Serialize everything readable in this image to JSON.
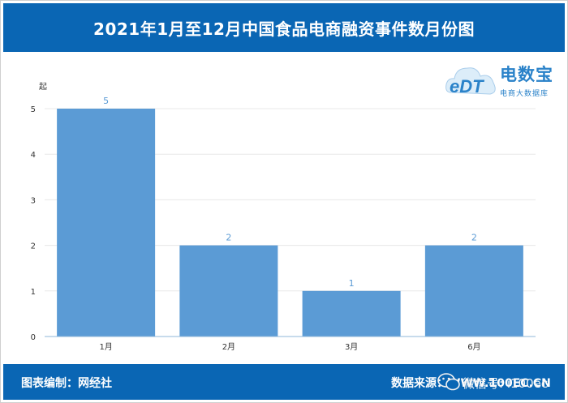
{
  "header": {
    "title": "2021年1月至12月中国食品电商融资事件数月份图"
  },
  "logo": {
    "brand": "电数宝",
    "sub": "电商大数据库",
    "mark": "eDT",
    "icon": "cloud-logo-icon"
  },
  "footer": {
    "left_text": "图表编制：网经社",
    "right_text": "数据来源：WWW.100EC.CN",
    "wechat_text": "微信号: i100ec",
    "wechat_icon": "wechat-icon"
  },
  "colors": {
    "header_bg": "#0a66b4",
    "bar": "#5b9bd5",
    "label": "#5b9bd5",
    "grid": "#e8e8e8",
    "axis": "#8fb7d9"
  },
  "chart_data": {
    "type": "bar",
    "title": "2021年1月至12月中国食品电商融资事件数月份图",
    "ylabel": "起",
    "xlabel": "",
    "categories": [
      "1月",
      "2月",
      "3月",
      "6月"
    ],
    "values": [
      5,
      2,
      1,
      2
    ],
    "ylim": [
      0,
      5
    ],
    "yticks": [
      0,
      1,
      2,
      3,
      4,
      5
    ],
    "grid": true,
    "legend": "none"
  }
}
